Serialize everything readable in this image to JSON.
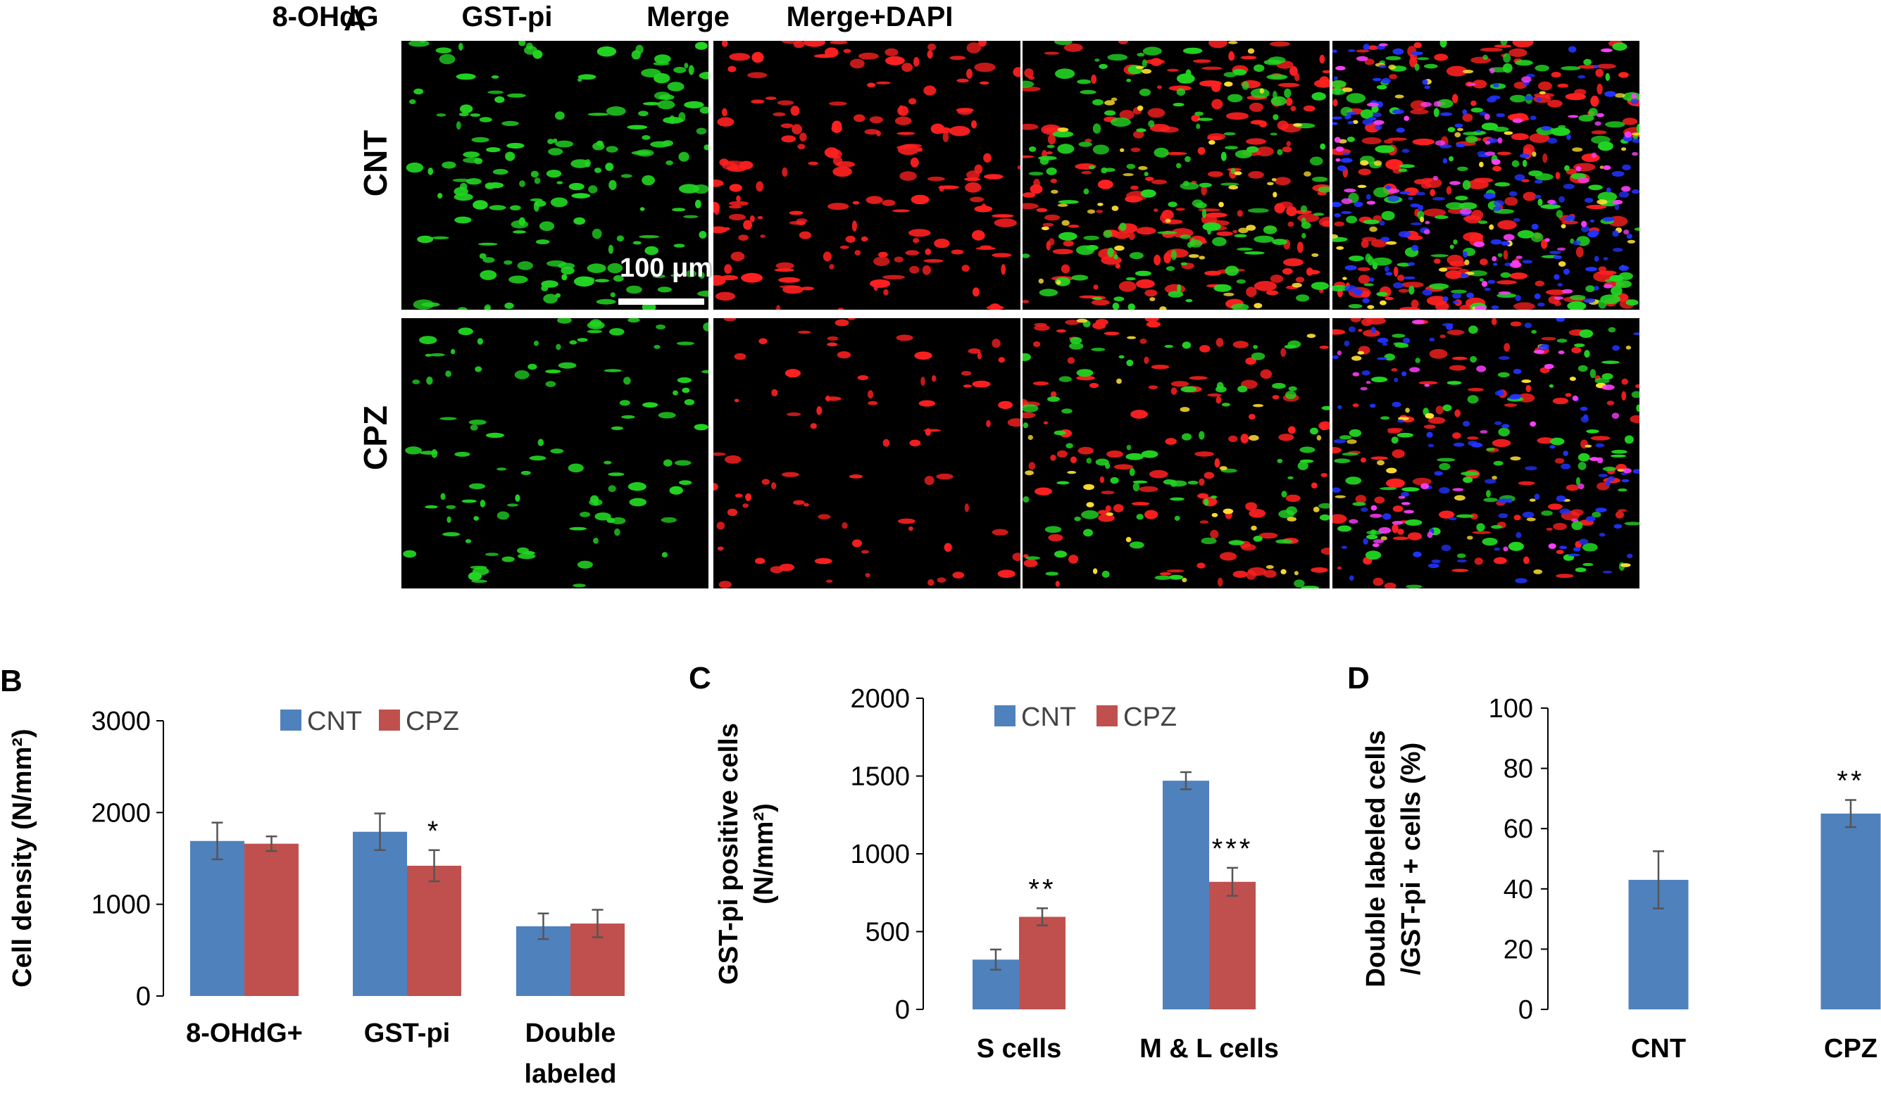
{
  "panel_a": {
    "letter": "A",
    "columns": [
      "8-OHdG",
      "GST-pi",
      "Merge",
      "Merge+DAPI"
    ],
    "rows": [
      "CNT",
      "CPZ"
    ],
    "scale_bar": "100 μm"
  },
  "colors": {
    "cnt": "#4f81bd",
    "cpz": "#c0504d",
    "green": "#22d622",
    "red": "#ff2020",
    "blue": "#2233ff"
  },
  "chart_data": [
    {
      "panel": "B",
      "type": "bar",
      "ylabel": "Cell density (N/mm²)",
      "categories": [
        "8-OHdG+",
        "GST-pi",
        "Double labeled"
      ],
      "category_lines": [
        [
          "8-OHdG+"
        ],
        [
          "GST-pi"
        ],
        [
          "Double",
          "labeled"
        ]
      ],
      "series": [
        {
          "name": "CNT",
          "values": [
            1690,
            1790,
            760
          ],
          "errors": [
            200,
            200,
            140
          ]
        },
        {
          "name": "CPZ",
          "values": [
            1660,
            1420,
            790
          ],
          "errors": [
            80,
            170,
            150
          ]
        }
      ],
      "ylim": [
        0,
        3000
      ],
      "yticks": [
        0,
        1000,
        2000,
        3000
      ],
      "annotations": [
        {
          "series": 1,
          "category": 1,
          "text": "*"
        }
      ],
      "legend": "top"
    },
    {
      "panel": "C",
      "type": "bar",
      "ylabel": "GST-pi positive cells (N/mm²)",
      "ylabel_lines": [
        "GST-pi positive cells",
        "(N/mm²)"
      ],
      "categories": [
        "S cells",
        "M & L cells"
      ],
      "category_lines": [
        [
          "S cells"
        ],
        [
          "M & L cells"
        ]
      ],
      "series": [
        {
          "name": "CNT",
          "values": [
            320,
            1470
          ],
          "errors": [
            65,
            55
          ]
        },
        {
          "name": "CPZ",
          "values": [
            595,
            820
          ],
          "errors": [
            55,
            90
          ]
        }
      ],
      "ylim": [
        0,
        2000
      ],
      "yticks": [
        0,
        500,
        1000,
        1500,
        2000
      ],
      "annotations": [
        {
          "series": 1,
          "category": 0,
          "text": "**"
        },
        {
          "series": 1,
          "category": 1,
          "text": "***"
        }
      ],
      "legend": "top"
    },
    {
      "panel": "D",
      "type": "bar",
      "ylabel": "Double labeled cells /GST-pi + cells (%)",
      "ylabel_lines": [
        "Double labeled cells",
        "/GST-pi + cells (%)"
      ],
      "categories": [
        "CNT",
        "CPZ"
      ],
      "category_lines": [
        [
          "CNT"
        ],
        [
          "CPZ"
        ]
      ],
      "series": [
        {
          "values": [
            43,
            65
          ],
          "errors": [
            9.5,
            4.5
          ]
        }
      ],
      "ylim": [
        0,
        100
      ],
      "yticks": [
        0,
        20,
        40,
        60,
        80,
        100
      ],
      "annotations": [
        {
          "series": 0,
          "category": 1,
          "text": "**"
        }
      ]
    }
  ]
}
